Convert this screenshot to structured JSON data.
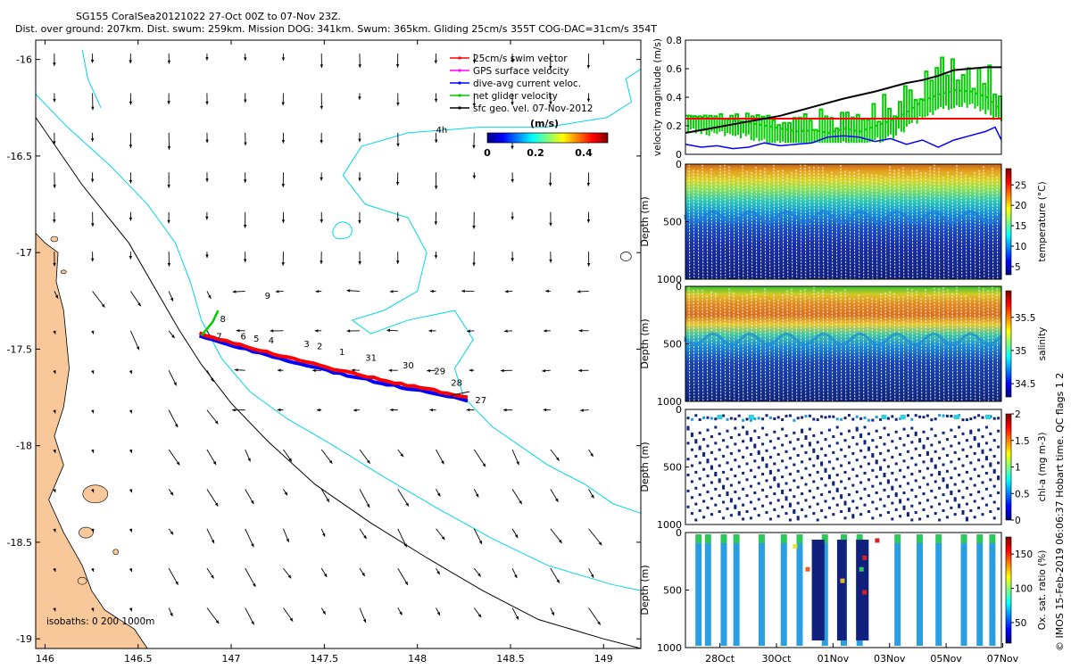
{
  "header": {
    "line1": "SG155 CoralSea20121022 27-Oct 00Z to 07-Nov 23Z.",
    "line2": "Dist. over ground: 207km. Dist. swum: 259km. Mission DOG: 341km. Swum: 365km. Gliding 25cm/s 355T COG-DAC=31cm/s 354T"
  },
  "side_label": "© IMOS 15-Feb-2019 06:06:37 Hobart time. QC flags 1  2",
  "colors": {
    "coast": "#000000",
    "isobath": "#00d8e6",
    "land": "#f8c89a",
    "track_red": "#ff0000",
    "track_blue": "#0000ff",
    "track_green": "#00cc00",
    "gps": "#ff00ff"
  },
  "chart_data": [
    {
      "id": "map",
      "type": "map",
      "xlim": [
        145.95,
        149.2
      ],
      "ylim": [
        -19.05,
        -15.9
      ],
      "xticks": [
        146,
        146.5,
        147,
        147.5,
        148,
        148.5,
        149
      ],
      "xtick_labels": [
        "146",
        "146.5",
        "147",
        "147.5",
        "148",
        "148.5",
        "149"
      ],
      "yticks": [
        -16,
        -16.5,
        -17,
        -17.5,
        -18,
        -18.5,
        -19
      ],
      "ytick_labels": [
        "-16",
        "-16.5",
        "-17",
        "-17.5",
        "-18",
        "-18.5",
        "-19"
      ],
      "legend": [
        {
          "label": "25cm/s swim vector",
          "color": "#ff0000"
        },
        {
          "label": "GPS surface velocity",
          "color": "#ff00ff"
        },
        {
          "label": "dive-avg current veloc.",
          "color": "#0000ff"
        },
        {
          "label": "net glider velocity",
          "color": "#00cc00"
        },
        {
          "label": "sfc geo. vel. 07-Nov-2012",
          "color": "#000000"
        }
      ],
      "colorbar": {
        "label": "(m/s)",
        "ticks": [
          "0",
          "0.2",
          "0.4"
        ],
        "range": [
          0,
          0.5
        ]
      },
      "isobaths_label": "isobaths: 0   200  1000m",
      "annotation_4h": "4h",
      "track": {
        "start": [
          146.83,
          -17.42
        ],
        "end": [
          148.27,
          -17.75
        ]
      },
      "day_labels": [
        {
          "t": "9",
          "lon": 147.18,
          "lat": -17.24
        },
        {
          "t": "8",
          "lon": 146.94,
          "lat": -17.36
        },
        {
          "t": "7",
          "lon": 146.92,
          "lat": -17.45
        },
        {
          "t": "6",
          "lon": 147.05,
          "lat": -17.45
        },
        {
          "t": "5",
          "lon": 147.12,
          "lat": -17.46
        },
        {
          "t": "4",
          "lon": 147.2,
          "lat": -17.47
        },
        {
          "t": "3",
          "lon": 147.39,
          "lat": -17.49
        },
        {
          "t": "2",
          "lon": 147.46,
          "lat": -17.5
        },
        {
          "t": "1",
          "lon": 147.58,
          "lat": -17.53
        },
        {
          "t": "31",
          "lon": 147.72,
          "lat": -17.56
        },
        {
          "t": "30",
          "lon": 147.92,
          "lat": -17.6
        },
        {
          "t": "29",
          "lon": 148.09,
          "lat": -17.63
        },
        {
          "t": "28",
          "lon": 148.18,
          "lat": -17.69
        },
        {
          "t": "27",
          "lon": 148.31,
          "lat": -17.78
        }
      ]
    },
    {
      "id": "velocity",
      "type": "line",
      "ylabel": "velocity magnitude (m/s)",
      "ylim": [
        0,
        0.8
      ],
      "yticks": [
        "0",
        "0.2",
        "0.4",
        "0.6",
        "0.8"
      ],
      "series": [
        {
          "name": "25cm/s swim vector",
          "color": "#ff0000",
          "values": [
            0.25,
            0.25
          ]
        },
        {
          "name": "sfc geo. vel.",
          "color": "#000000",
          "points": [
            [
              0,
              0.15
            ],
            [
              0.1,
              0.19
            ],
            [
              0.2,
              0.23
            ],
            [
              0.3,
              0.27
            ],
            [
              0.4,
              0.33
            ],
            [
              0.5,
              0.39
            ],
            [
              0.6,
              0.44
            ],
            [
              0.7,
              0.5
            ],
            [
              0.75,
              0.52
            ],
            [
              0.8,
              0.55
            ],
            [
              0.85,
              0.59
            ],
            [
              0.9,
              0.6
            ],
            [
              0.95,
              0.61
            ],
            [
              1,
              0.61
            ]
          ]
        },
        {
          "name": "dive-avg current veloc.",
          "color": "#0000ff",
          "points": [
            [
              0,
              0.07
            ],
            [
              0.05,
              0.05
            ],
            [
              0.1,
              0.06
            ],
            [
              0.15,
              0.04
            ],
            [
              0.2,
              0.05
            ],
            [
              0.25,
              0.08
            ],
            [
              0.3,
              0.06
            ],
            [
              0.35,
              0.07
            ],
            [
              0.4,
              0.08
            ],
            [
              0.45,
              0.12
            ],
            [
              0.5,
              0.13
            ],
            [
              0.55,
              0.12
            ],
            [
              0.6,
              0.09
            ],
            [
              0.65,
              0.11
            ],
            [
              0.7,
              0.07
            ],
            [
              0.75,
              0.1
            ],
            [
              0.8,
              0.05
            ],
            [
              0.85,
              0.1
            ],
            [
              0.9,
              0.13
            ],
            [
              0.95,
              0.16
            ],
            [
              0.98,
              0.19
            ],
            [
              1,
              0.1
            ]
          ]
        },
        {
          "name": "net glider velocity",
          "color": "#00cc00",
          "points": [
            [
              0,
              0.27
            ],
            [
              0.05,
              0.26
            ],
            [
              0.1,
              0.25
            ],
            [
              0.15,
              0.24
            ],
            [
              0.2,
              0.22
            ],
            [
              0.25,
              0.2
            ],
            [
              0.3,
              0.18
            ],
            [
              0.35,
              0.16
            ],
            [
              0.4,
              0.17
            ],
            [
              0.45,
              0.15
            ],
            [
              0.5,
              0.18
            ],
            [
              0.55,
              0.16
            ],
            [
              0.6,
              0.2
            ],
            [
              0.65,
              0.24
            ],
            [
              0.7,
              0.3
            ],
            [
              0.75,
              0.38
            ],
            [
              0.8,
              0.42
            ],
            [
              0.85,
              0.45
            ],
            [
              0.9,
              0.44
            ],
            [
              0.95,
              0.4
            ],
            [
              1,
              0.3
            ]
          ]
        }
      ]
    },
    {
      "id": "temperature",
      "type": "heatmap",
      "ylabel": "Depth (m)",
      "yticks": [
        "0",
        "500",
        "1000"
      ],
      "colorbar_label": "temperature (°C)",
      "colorbar_ticks": [
        "5",
        "10",
        "15",
        "20",
        "25"
      ],
      "range": [
        3,
        29
      ]
    },
    {
      "id": "salinity",
      "type": "heatmap",
      "ylabel": "Depth (m)",
      "yticks": [
        "0",
        "500",
        "1000"
      ],
      "colorbar_label": "salinity",
      "colorbar_ticks": [
        "34.5",
        "35",
        "35.5"
      ],
      "range": [
        34.3,
        35.9
      ]
    },
    {
      "id": "chla",
      "type": "heatmap",
      "ylabel": "Depth (m)",
      "yticks": [
        "0",
        "500",
        "1000"
      ],
      "colorbar_label": "chl-a (mg m-3)",
      "colorbar_ticks": [
        "0",
        "0.5",
        "1",
        "1.5",
        "2"
      ],
      "range": [
        0,
        2
      ]
    },
    {
      "id": "oxygen",
      "type": "heatmap",
      "ylabel": "Depth (m)",
      "yticks": [
        "0",
        "500",
        "1000"
      ],
      "colorbar_label": "Ox. sat. ratio (%)",
      "colorbar_ticks": [
        "50",
        "100",
        "150"
      ],
      "range": [
        20,
        175
      ],
      "x_tick_labels": [
        "28Oct",
        "30Oct",
        "01Nov",
        "03Nov",
        "05Nov",
        "07Nov"
      ]
    }
  ]
}
